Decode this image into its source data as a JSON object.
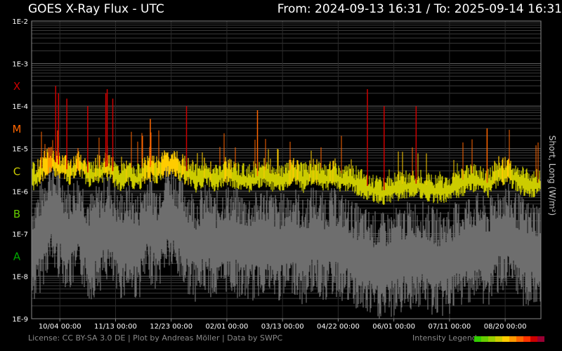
{
  "header": {
    "title": "GOES X-Ray Flux - UTC",
    "range": "From: 2024-09-13 16:31  /  To: 2025-09-14 16:31"
  },
  "footer": {
    "license": "License: CC BY-SA 3.0 DE | Plot by Andreas Möller | Data by SWPC",
    "legend_label": "Intensity Legend",
    "legend_colors": [
      "#33cc00",
      "#66cc00",
      "#99cc00",
      "#cccc00",
      "#ffcc00",
      "#ff9900",
      "#ff6600",
      "#ff3300",
      "#cc0000",
      "#990033"
    ]
  },
  "chart_data": {
    "type": "line",
    "title": "GOES X-Ray Flux - UTC",
    "ylabel": "Short, Long (W/m²)",
    "yscale": "log",
    "ylim": [
      1e-09,
      0.01
    ],
    "ytick_labels": [
      "1E-2",
      "1E-3",
      "1E-4",
      "1E-5",
      "1E-6",
      "1E-7",
      "1E-8",
      "1E-9"
    ],
    "flare_classes": [
      {
        "label": "X",
        "color": "#cc0000",
        "value": 0.0003
      },
      {
        "label": "M",
        "color": "#ff6600",
        "value": 3e-05
      },
      {
        "label": "C",
        "color": "#cccc00",
        "value": 3e-06
      },
      {
        "label": "B",
        "color": "#66cc00",
        "value": 3e-07
      },
      {
        "label": "A",
        "color": "#00aa00",
        "value": 3e-08
      }
    ],
    "x_start": "2024-09-13 16:31",
    "x_end": "2025-09-14 16:31",
    "x_tick_dates": [
      "2024-10-04",
      "2024-11-13",
      "2024-12-23",
      "2025-02-01",
      "2025-03-13",
      "2025-04-22",
      "2025-06-01",
      "2025-07-11",
      "2025-08-20"
    ],
    "xtick_labels": [
      "10/04 00:00",
      "11/13 00:00",
      "12/23 00:00",
      "02/01 00:00",
      "03/13 00:00",
      "04/22 00:00",
      "06/01 00:00",
      "07/11 00:00",
      "08/20 00:00"
    ],
    "grid": true,
    "series": [
      {
        "name": "Long",
        "color": "#cccc00",
        "x": [
          "2024-09-13",
          "2024-09-20",
          "2024-09-27",
          "2024-10-04",
          "2024-10-11",
          "2024-10-18",
          "2024-10-25",
          "2024-11-01",
          "2024-11-08",
          "2024-11-15",
          "2024-11-22",
          "2024-11-29",
          "2024-12-06",
          "2024-12-13",
          "2024-12-20",
          "2024-12-27",
          "2025-01-03",
          "2025-01-10",
          "2025-01-17",
          "2025-01-24",
          "2025-01-31",
          "2025-02-07",
          "2025-02-14",
          "2025-02-21",
          "2025-02-28",
          "2025-03-07",
          "2025-03-14",
          "2025-03-21",
          "2025-03-28",
          "2025-04-04",
          "2025-04-11",
          "2025-04-18",
          "2025-04-25",
          "2025-05-02",
          "2025-05-09",
          "2025-05-16",
          "2025-05-23",
          "2025-05-30",
          "2025-06-06",
          "2025-06-13",
          "2025-06-20",
          "2025-06-27",
          "2025-07-04",
          "2025-07-11",
          "2025-07-18",
          "2025-07-25",
          "2025-08-01",
          "2025-08-08",
          "2025-08-15",
          "2025-08-22",
          "2025-08-29",
          "2025-09-05",
          "2025-09-12"
        ],
        "y": [
          2e-06,
          3e-06,
          6e-06,
          4e-06,
          3e-06,
          5e-06,
          2.5e-06,
          3e-06,
          4e-06,
          2e-06,
          3e-06,
          2e-06,
          4e-06,
          3e-06,
          5e-06,
          4e-06,
          3e-06,
          2e-06,
          3e-06,
          2e-06,
          3e-06,
          2.5e-06,
          2e-06,
          2e-06,
          3e-06,
          2e-06,
          2e-06,
          3e-06,
          2e-06,
          3e-06,
          2e-06,
          2.5e-06,
          2e-06,
          2e-06,
          1.5e-06,
          1.2e-06,
          1e-06,
          1.2e-06,
          1.3e-06,
          1.5e-06,
          1.5e-06,
          1.2e-06,
          1.1e-06,
          1.2e-06,
          1.5e-06,
          2e-06,
          2e-06,
          1.5e-06,
          3e-06,
          3e-06,
          2e-06,
          1.5e-06,
          1.5e-06
        ]
      },
      {
        "name": "Short",
        "color": "#6e6e6e",
        "x": [
          "2024-09-13",
          "2024-09-20",
          "2024-09-27",
          "2024-10-04",
          "2024-10-11",
          "2024-10-18",
          "2024-10-25",
          "2024-11-01",
          "2024-11-08",
          "2024-11-15",
          "2024-11-22",
          "2024-11-29",
          "2024-12-06",
          "2024-12-13",
          "2024-12-20",
          "2024-12-27",
          "2025-01-03",
          "2025-01-10",
          "2025-01-17",
          "2025-01-24",
          "2025-01-31",
          "2025-02-07",
          "2025-02-14",
          "2025-02-21",
          "2025-02-28",
          "2025-03-07",
          "2025-03-14",
          "2025-03-21",
          "2025-03-28",
          "2025-04-04",
          "2025-04-11",
          "2025-04-18",
          "2025-04-25",
          "2025-05-02",
          "2025-05-09",
          "2025-05-16",
          "2025-05-23",
          "2025-05-30",
          "2025-06-06",
          "2025-06-13",
          "2025-06-20",
          "2025-06-27",
          "2025-07-04",
          "2025-07-11",
          "2025-07-18",
          "2025-07-25",
          "2025-08-01",
          "2025-08-08",
          "2025-08-15",
          "2025-08-22",
          "2025-08-29",
          "2025-09-05",
          "2025-09-12"
        ],
        "y": [
          2e-08,
          5e-08,
          2e-07,
          1e-07,
          5e-08,
          1e-07,
          3e-08,
          5e-08,
          1e-07,
          3e-08,
          5e-08,
          3e-08,
          1e-07,
          5e-08,
          2e-07,
          1e-07,
          5e-08,
          3e-08,
          5e-08,
          3e-08,
          5e-08,
          4e-08,
          3e-08,
          3e-08,
          5e-08,
          3e-08,
          3e-08,
          5e-08,
          2e-08,
          5e-08,
          3e-08,
          4e-08,
          3e-08,
          2e-08,
          1.5e-08,
          1.2e-08,
          1e-08,
          1.2e-08,
          1.5e-08,
          2e-08,
          2e-08,
          1.5e-08,
          1.2e-08,
          1.5e-08,
          2e-08,
          3e-08,
          3e-08,
          2e-08,
          5e-08,
          5e-08,
          3e-08,
          2e-08,
          2e-08
        ]
      }
    ],
    "peaks": [
      {
        "x": "2024-10-01",
        "y": 0.0003,
        "class": "X"
      },
      {
        "x": "2024-10-03",
        "y": 0.0002,
        "class": "X"
      },
      {
        "x": "2024-10-09",
        "y": 0.00015,
        "class": "X"
      },
      {
        "x": "2024-10-24",
        "y": 0.0001,
        "class": "X"
      },
      {
        "x": "2024-11-06",
        "y": 0.0002,
        "class": "X"
      },
      {
        "x": "2024-11-07",
        "y": 0.00025,
        "class": "X"
      },
      {
        "x": "2024-11-11",
        "y": 0.00015,
        "class": "X"
      },
      {
        "x": "2024-12-08",
        "y": 5e-05,
        "class": "M"
      },
      {
        "x": "2025-01-03",
        "y": 0.0001,
        "class": "X"
      },
      {
        "x": "2025-02-23",
        "y": 8e-05,
        "class": "M"
      },
      {
        "x": "2025-05-13",
        "y": 0.00025,
        "class": "X"
      },
      {
        "x": "2025-05-25",
        "y": 0.0001,
        "class": "X"
      },
      {
        "x": "2025-06-17",
        "y": 0.0001,
        "class": "X"
      },
      {
        "x": "2025-08-07",
        "y": 3e-05,
        "class": "M"
      }
    ]
  }
}
